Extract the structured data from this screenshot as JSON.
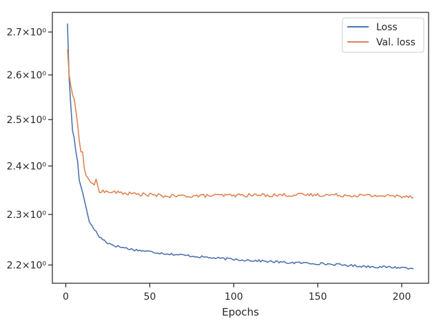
{
  "chart_data": {
    "type": "line",
    "xlabel": "Epochs",
    "ylabel": "",
    "title": "",
    "x_scale": "linear",
    "y_scale": "log",
    "xlim": [
      -8,
      216
    ],
    "ylim": [
      2.165,
      2.747
    ],
    "x_ticks": [
      0,
      50,
      100,
      150,
      200
    ],
    "x_tick_labels": [
      "0",
      "50",
      "100",
      "150",
      "200"
    ],
    "y_ticks": [
      2.2,
      2.3,
      2.4,
      2.5,
      2.6,
      2.7
    ],
    "y_tick_labels": [
      "2.2×10⁰",
      "2.3×10⁰",
      "2.4×10⁰",
      "2.5×10⁰",
      "2.6×10⁰",
      "2.7×10⁰"
    ],
    "grid": false,
    "legend_position": "upper-right",
    "series": [
      {
        "name": "Loss",
        "color": "#4c72b0",
        "keypoints": [
          [
            1,
            2.72
          ],
          [
            2,
            2.59
          ],
          [
            3,
            2.53
          ],
          [
            4,
            2.475
          ],
          [
            5,
            2.46
          ],
          [
            6,
            2.43
          ],
          [
            7,
            2.41
          ],
          [
            8,
            2.37
          ],
          [
            10,
            2.345
          ],
          [
            12,
            2.315
          ],
          [
            14,
            2.285
          ],
          [
            17,
            2.27
          ],
          [
            20,
            2.255
          ],
          [
            25,
            2.243
          ],
          [
            30,
            2.237
          ],
          [
            40,
            2.23
          ],
          [
            50,
            2.226
          ],
          [
            60,
            2.222
          ],
          [
            70,
            2.219
          ],
          [
            80,
            2.216
          ],
          [
            90,
            2.213
          ],
          [
            100,
            2.211
          ],
          [
            110,
            2.209
          ],
          [
            120,
            2.207
          ],
          [
            130,
            2.205
          ],
          [
            140,
            2.204
          ],
          [
            150,
            2.203
          ],
          [
            160,
            2.201
          ],
          [
            170,
            2.199
          ],
          [
            180,
            2.197
          ],
          [
            190,
            2.196
          ],
          [
            200,
            2.195
          ],
          [
            207,
            2.194
          ]
        ],
        "noise": 0.0022
      },
      {
        "name": "Val. loss",
        "color": "#dd8452",
        "keypoints": [
          [
            1,
            2.66
          ],
          [
            2,
            2.6
          ],
          [
            3,
            2.575
          ],
          [
            4,
            2.555
          ],
          [
            5,
            2.545
          ],
          [
            6,
            2.52
          ],
          [
            7,
            2.49
          ],
          [
            8,
            2.455
          ],
          [
            9,
            2.43
          ],
          [
            10,
            2.43
          ],
          [
            11,
            2.395
          ],
          [
            12,
            2.38
          ],
          [
            13,
            2.376
          ],
          [
            14,
            2.37
          ],
          [
            15,
            2.365
          ],
          [
            17,
            2.362
          ],
          [
            18,
            2.369
          ],
          [
            20,
            2.348
          ],
          [
            25,
            2.346
          ],
          [
            30,
            2.345
          ],
          [
            40,
            2.342
          ],
          [
            50,
            2.34
          ],
          [
            60,
            2.337
          ],
          [
            80,
            2.338
          ],
          [
            100,
            2.339
          ],
          [
            150,
            2.34
          ],
          [
            207,
            2.337
          ]
        ],
        "noise": 0.0035
      }
    ]
  }
}
